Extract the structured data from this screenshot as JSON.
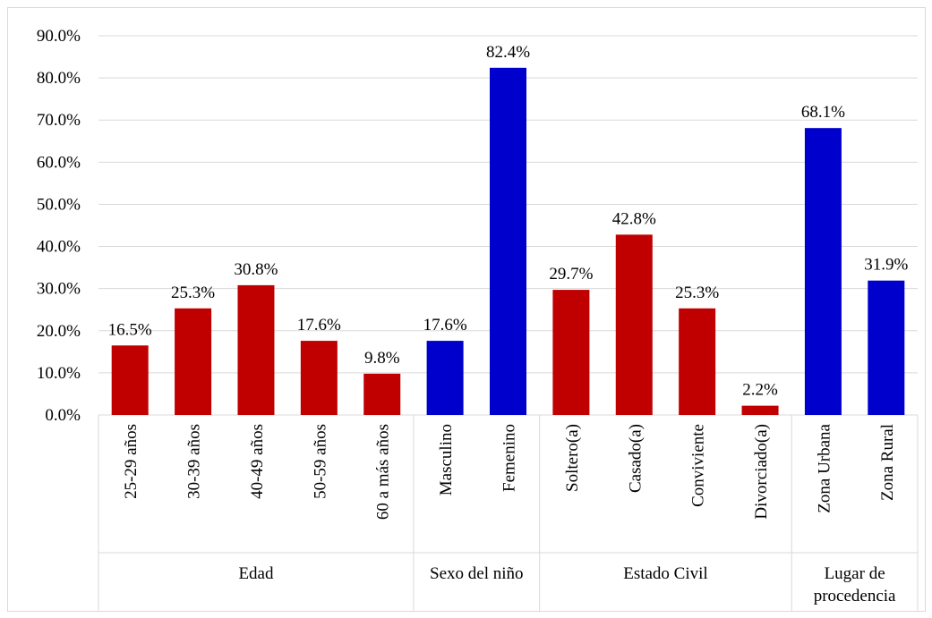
{
  "chart_data": {
    "type": "bar",
    "title": "",
    "xlabel": "",
    "ylabel": "",
    "ylim": [
      0,
      90
    ],
    "y_ticks": [
      "0.0%",
      "10.0%",
      "20.0%",
      "30.0%",
      "40.0%",
      "50.0%",
      "60.0%",
      "70.0%",
      "80.0%",
      "90.0%"
    ],
    "grid": true,
    "legend": "none",
    "colors": {
      "red": "#c00000",
      "blue": "#0000cc",
      "grid": "#d9d9d9"
    },
    "categories": [
      "25-29 años",
      "30-39 años",
      "40-49 años",
      "50-59 años",
      "60 a más años",
      "Masculino",
      "Femenino",
      "Soltero(a)",
      "Casado(a)",
      "Conviviente",
      "Divorciado(a)",
      "Zona Urbana",
      "Zona Rural"
    ],
    "values": [
      16.5,
      25.3,
      30.8,
      17.6,
      9.8,
      17.6,
      82.4,
      29.7,
      42.8,
      25.3,
      2.2,
      68.1,
      31.9
    ],
    "value_labels": [
      "16.5%",
      "25.3%",
      "30.8%",
      "17.6%",
      "9.8%",
      "17.6%",
      "82.4%",
      "29.7%",
      "42.8%",
      "25.3%",
      "2.2%",
      "68.1%",
      "31.9%"
    ],
    "bar_colors": [
      "red",
      "red",
      "red",
      "red",
      "red",
      "blue",
      "blue",
      "red",
      "red",
      "red",
      "red",
      "blue",
      "blue"
    ],
    "groups": [
      {
        "label": "Edad",
        "count": 5
      },
      {
        "label": "Sexo del niño",
        "count": 2
      },
      {
        "label": "Estado Civil",
        "count": 4
      },
      {
        "label": "Lugar de procedencia",
        "lines": [
          "Lugar de",
          "procedencia"
        ],
        "count": 2
      }
    ]
  }
}
